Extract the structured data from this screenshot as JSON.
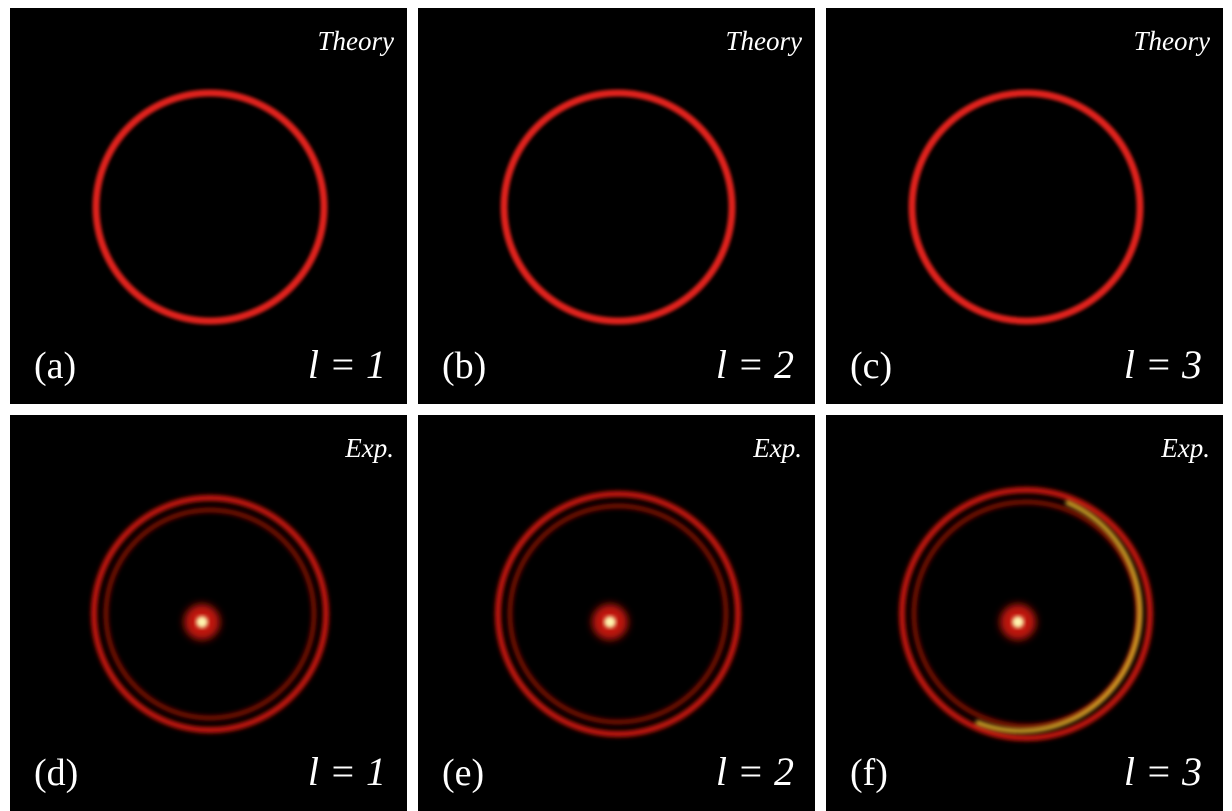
{
  "panels": [
    {
      "tag": "Theory",
      "label": "(a)",
      "order": "l = 1"
    },
    {
      "tag": "Theory",
      "label": "(b)",
      "order": "l = 2"
    },
    {
      "tag": "Theory",
      "label": "(c)",
      "order": "l = 3"
    },
    {
      "tag": "Exp.",
      "label": "(d)",
      "order": "l = 1"
    },
    {
      "tag": "Exp.",
      "label": "(e)",
      "order": "l = 2"
    },
    {
      "tag": "Exp.",
      "label": "(f)",
      "order": "l = 3"
    }
  ]
}
